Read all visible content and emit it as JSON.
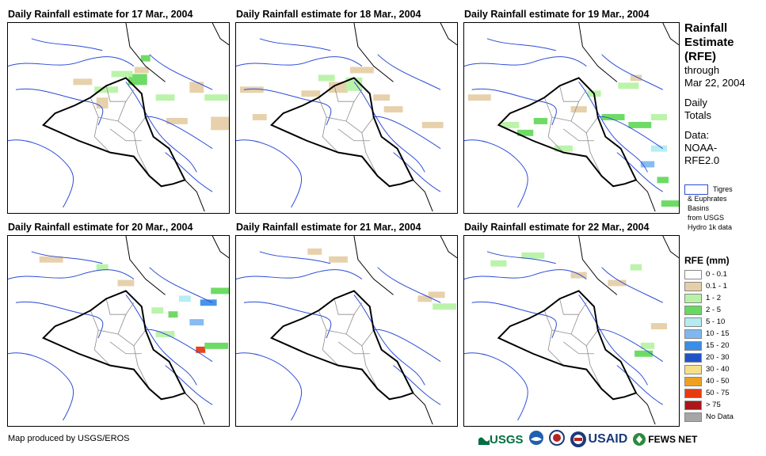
{
  "panels": [
    {
      "title": "Daily Rainfall estimate for 17 Mar., 2004",
      "rain": [
        {
          "x": 175,
          "y": 45,
          "cls": "3"
        },
        {
          "x": 165,
          "y": 72,
          "cls": "3"
        },
        {
          "x": 125,
          "y": 85,
          "cls": "2"
        },
        {
          "x": 95,
          "y": 75,
          "cls": "1"
        },
        {
          "x": 200,
          "y": 95,
          "cls": "2"
        },
        {
          "x": 240,
          "y": 82,
          "cls": "1"
        },
        {
          "x": 265,
          "y": 95,
          "cls": "2"
        },
        {
          "x": 270,
          "y": 128,
          "cls": "1"
        },
        {
          "x": 215,
          "y": 125,
          "cls": "1"
        },
        {
          "x": 120,
          "y": 102,
          "cls": "1"
        },
        {
          "x": 170,
          "y": 60,
          "cls": "1"
        },
        {
          "x": 145,
          "y": 65,
          "cls": "2"
        }
      ]
    },
    {
      "title": "Daily Rainfall estimate for 18 Mar., 2004",
      "rain": [
        {
          "x": 115,
          "y": 70,
          "cls": "2"
        },
        {
          "x": 130,
          "y": 82,
          "cls": "1"
        },
        {
          "x": 150,
          "y": 78,
          "cls": "2"
        },
        {
          "x": 185,
          "y": 95,
          "cls": "1"
        },
        {
          "x": 200,
          "y": 110,
          "cls": "1"
        },
        {
          "x": 95,
          "y": 90,
          "cls": "1"
        },
        {
          "x": 30,
          "y": 120,
          "cls": "1"
        },
        {
          "x": 160,
          "y": 60,
          "cls": "1"
        },
        {
          "x": 20,
          "y": 85,
          "cls": "1"
        },
        {
          "x": 250,
          "y": 130,
          "cls": "1"
        }
      ]
    },
    {
      "title": "Daily Rainfall estimate for 19 Mar., 2004",
      "rain": [
        {
          "x": 100,
          "y": 125,
          "cls": "3"
        },
        {
          "x": 80,
          "y": 140,
          "cls": "3"
        },
        {
          "x": 60,
          "y": 130,
          "cls": "2"
        },
        {
          "x": 150,
          "y": 110,
          "cls": "1"
        },
        {
          "x": 195,
          "y": 120,
          "cls": "3"
        },
        {
          "x": 215,
          "y": 80,
          "cls": "2"
        },
        {
          "x": 230,
          "y": 130,
          "cls": "3"
        },
        {
          "x": 255,
          "y": 160,
          "cls": "4"
        },
        {
          "x": 240,
          "y": 180,
          "cls": "5"
        },
        {
          "x": 260,
          "y": 200,
          "cls": "3"
        },
        {
          "x": 225,
          "y": 70,
          "cls": "1"
        },
        {
          "x": 170,
          "y": 90,
          "cls": "2"
        },
        {
          "x": 20,
          "y": 95,
          "cls": "1"
        },
        {
          "x": 255,
          "y": 120,
          "cls": "2"
        },
        {
          "x": 130,
          "y": 160,
          "cls": "2"
        },
        {
          "x": 270,
          "y": 230,
          "cls": "3"
        }
      ]
    },
    {
      "title": "Daily Rainfall estimate for 20 Mar., 2004",
      "rain": [
        {
          "x": 225,
          "y": 80,
          "cls": "4"
        },
        {
          "x": 255,
          "y": 85,
          "cls": "6"
        },
        {
          "x": 210,
          "y": 100,
          "cls": "3"
        },
        {
          "x": 190,
          "y": 95,
          "cls": "2"
        },
        {
          "x": 240,
          "y": 110,
          "cls": "5"
        },
        {
          "x": 245,
          "y": 145,
          "cls": "10"
        },
        {
          "x": 265,
          "y": 140,
          "cls": "3"
        },
        {
          "x": 150,
          "y": 60,
          "cls": "1"
        },
        {
          "x": 55,
          "y": 30,
          "cls": "1"
        },
        {
          "x": 120,
          "y": 40,
          "cls": "2"
        },
        {
          "x": 270,
          "y": 70,
          "cls": "3"
        },
        {
          "x": 200,
          "y": 125,
          "cls": "2"
        }
      ]
    },
    {
      "title": "Daily Rainfall estimate for 21 Mar., 2004",
      "rain": [
        {
          "x": 100,
          "y": 20,
          "cls": "1"
        },
        {
          "x": 130,
          "y": 30,
          "cls": "1"
        },
        {
          "x": 255,
          "y": 75,
          "cls": "1"
        },
        {
          "x": 265,
          "y": 90,
          "cls": "2"
        },
        {
          "x": 240,
          "y": 80,
          "cls": "1"
        }
      ]
    },
    {
      "title": "Daily Rainfall estimate for 22 Mar., 2004",
      "rain": [
        {
          "x": 45,
          "y": 35,
          "cls": "2"
        },
        {
          "x": 90,
          "y": 25,
          "cls": "2"
        },
        {
          "x": 150,
          "y": 50,
          "cls": "1"
        },
        {
          "x": 200,
          "y": 60,
          "cls": "1"
        },
        {
          "x": 225,
          "y": 40,
          "cls": "2"
        },
        {
          "x": 240,
          "y": 140,
          "cls": "2"
        },
        {
          "x": 235,
          "y": 150,
          "cls": "3"
        },
        {
          "x": 255,
          "y": 115,
          "cls": "1"
        }
      ]
    }
  ],
  "side": {
    "line1": "Rainfall",
    "line2": "Estimate",
    "line3": "(RFE)",
    "line4": "through",
    "line5": "Mar 22, 2004",
    "line6": "Daily",
    "line7": "Totals",
    "line8": "Data:",
    "line9": "NOAA-",
    "line10": "RFE2.0"
  },
  "basin_legend": {
    "label1": "Tigres",
    "label2": "& Euphrates",
    "label3": "Basins",
    "label4": "from USGS",
    "label5": "Hydro 1k data",
    "color": "#2a4bd7"
  },
  "rfe_legend": {
    "title": "RFE (mm)",
    "classes": [
      {
        "label": "0 - 0.1",
        "color": "#ffffff"
      },
      {
        "label": "0.1 - 1",
        "color": "#e6cfa8"
      },
      {
        "label": "1 - 2",
        "color": "#b8f2a6"
      },
      {
        "label": "2 - 5",
        "color": "#66d95e"
      },
      {
        "label": "5 - 10",
        "color": "#b4ecf2"
      },
      {
        "label": "10 - 15",
        "color": "#7fb8f0"
      },
      {
        "label": "15 - 20",
        "color": "#3b8ee8"
      },
      {
        "label": "20 - 30",
        "color": "#1f52c7"
      },
      {
        "label": "30 - 40",
        "color": "#f5e08a"
      },
      {
        "label": "40 - 50",
        "color": "#f0a020"
      },
      {
        "label": "50 - 75",
        "color": "#e83a10"
      },
      {
        "label": "> 75",
        "color": "#a8171a"
      },
      {
        "label": "No Data",
        "color": "#a6a6a6"
      }
    ]
  },
  "credit": "Map produced by USGS/EROS",
  "logos": {
    "usgs": "USGS",
    "usaid": "USAID",
    "fewsnet": "FEWS NET"
  },
  "colors": {
    "border_black": "#000000",
    "river_blue": "#2a4bd7",
    "district_gray": "#8a8a8a"
  }
}
